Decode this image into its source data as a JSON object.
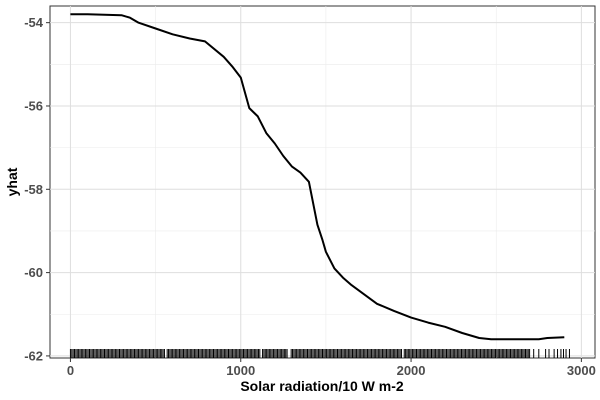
{
  "chart_data": {
    "type": "line",
    "title": "",
    "xlabel": "Solar radiation/10 W m-2",
    "ylabel": "yhat",
    "xlim": [
      -120,
      3080
    ],
    "ylim": [
      -62.05,
      -53.6
    ],
    "x_ticks": [
      0,
      1000,
      2000,
      3000
    ],
    "y_ticks": [
      -54,
      -56,
      -58,
      -60,
      -62
    ],
    "x_tick_labels": [
      "0",
      "1000",
      "2000",
      "3000"
    ],
    "y_tick_labels": [
      "-54",
      "-56",
      "-58",
      "-60",
      "-62"
    ],
    "grid": true,
    "line_color": "#000000",
    "series": [
      {
        "x": [
          0,
          100,
          200,
          300,
          350,
          400,
          500,
          600,
          700,
          790,
          900,
          950,
          1000,
          1050,
          1100,
          1150,
          1200,
          1250,
          1300,
          1350,
          1400,
          1450,
          1480,
          1500,
          1550,
          1600,
          1650,
          1700,
          1800,
          1900,
          2000,
          2100,
          2200,
          2300,
          2400,
          2470,
          2600,
          2750,
          2800,
          2900
        ],
        "y": [
          -53.8,
          -53.8,
          -53.81,
          -53.82,
          -53.88,
          -54.0,
          -54.14,
          -54.28,
          -54.38,
          -54.45,
          -54.82,
          -55.05,
          -55.32,
          -56.05,
          -56.25,
          -56.65,
          -56.9,
          -57.2,
          -57.45,
          -57.6,
          -57.82,
          -58.85,
          -59.22,
          -59.5,
          -59.9,
          -60.12,
          -60.3,
          -60.45,
          -60.75,
          -60.92,
          -61.08,
          -61.2,
          -61.3,
          -61.45,
          -61.57,
          -61.6,
          -61.6,
          -61.6,
          -61.57,
          -61.55
        ]
      }
    ],
    "rug": {
      "x_start": 0,
      "x_end": 2940,
      "gaps": [
        560,
        1120,
        1285,
        1950
      ],
      "sparse": [
        2720,
        2750,
        2790,
        2810,
        2840,
        2860,
        2880,
        2895,
        2910,
        2930
      ]
    }
  }
}
